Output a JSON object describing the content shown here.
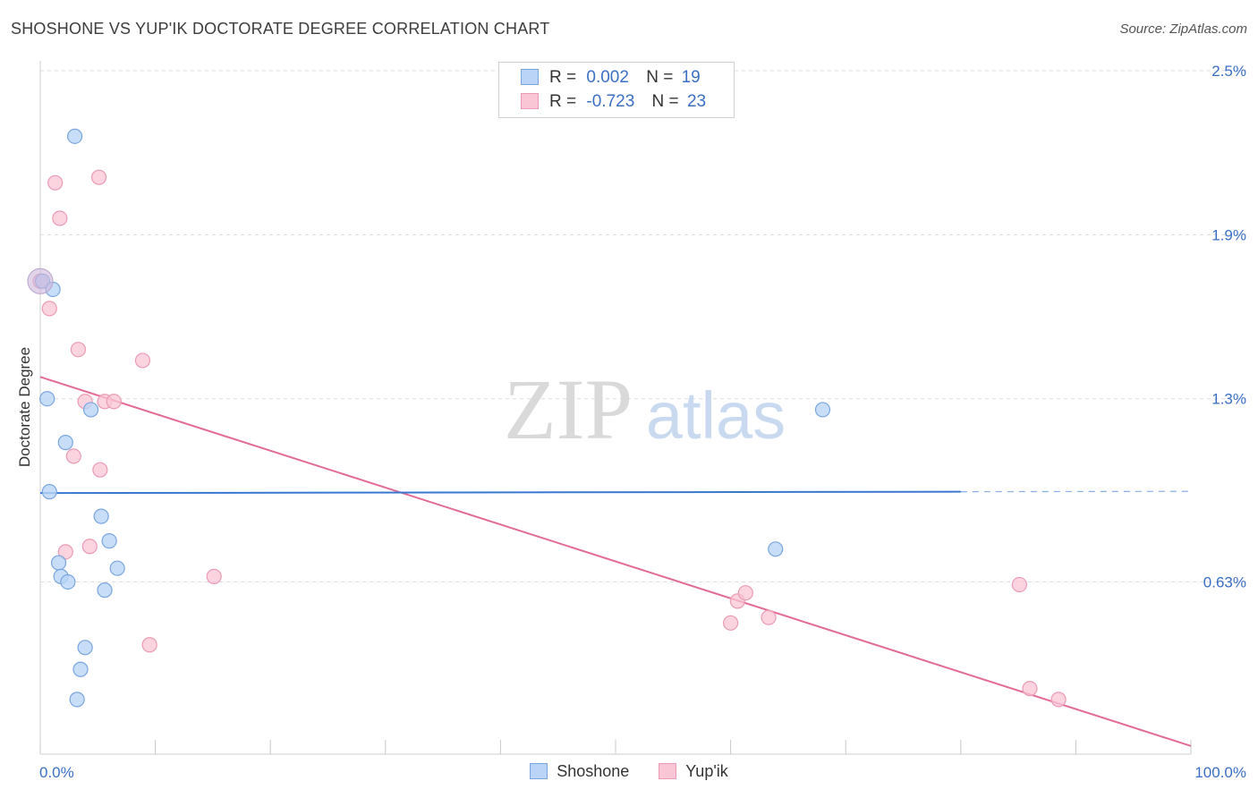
{
  "title": "SHOSHONE VS YUP'IK DOCTORATE DEGREE CORRELATION CHART",
  "source": "Source: ZipAtlas.com",
  "watermark": {
    "zip": "ZIP",
    "atlas": "atlas"
  },
  "legend": {
    "rows": [
      {
        "r_label": "R =",
        "r_value": "0.002",
        "n_label": "N =",
        "n_value": "19"
      },
      {
        "r_label": "R =",
        "r_value": "-0.723",
        "n_label": "N =",
        "n_value": "23"
      }
    ]
  },
  "chart_data": {
    "type": "scatter",
    "title": "SHOSHONE VS YUP'IK DOCTORATE DEGREE CORRELATION CHART",
    "xlabel": "",
    "ylabel": "Doctorate Degree",
    "xlim": [
      0,
      100
    ],
    "ylim": [
      0.0,
      2.5
    ],
    "x_tick_labels": [
      "0.0%",
      "100.0%"
    ],
    "y_ticks": [
      {
        "value": 2.5,
        "label": "2.5%"
      },
      {
        "value": 1.9,
        "label": "1.9%"
      },
      {
        "value": 1.3,
        "label": "1.3%"
      },
      {
        "value": 0.63,
        "label": "0.63%"
      }
    ],
    "grid": true,
    "colors": {
      "shoshone_fill": "#b9d4f6",
      "shoshone_stroke": "#7aa6e0",
      "shoshone_line": "#3a78d0",
      "yupik_fill": "#f9c6d5",
      "yupik_stroke": "#eb9ab4",
      "yupik_line": "#e26b95",
      "axis_label": "#3a6fc4"
    },
    "series": [
      {
        "name": "Shoshone",
        "points": [
          [
            3.0,
            2.26
          ],
          [
            0.2,
            1.73
          ],
          [
            1.1,
            1.7
          ],
          [
            0.6,
            1.3
          ],
          [
            4.4,
            1.26
          ],
          [
            2.2,
            1.14
          ],
          [
            0.8,
            0.96
          ],
          [
            5.3,
            0.87
          ],
          [
            6.0,
            0.78
          ],
          [
            1.6,
            0.7
          ],
          [
            1.8,
            0.65
          ],
          [
            2.4,
            0.63
          ],
          [
            6.7,
            0.68
          ],
          [
            5.6,
            0.6
          ],
          [
            3.9,
            0.39
          ],
          [
            3.5,
            0.31
          ],
          [
            3.2,
            0.2
          ],
          [
            68.0,
            1.26
          ],
          [
            63.9,
            0.75
          ]
        ],
        "trend": {
          "x": [
            0,
            80
          ],
          "y": [
            0.955,
            0.96
          ],
          "dashed_extension_x": [
            80,
            100
          ]
        }
      },
      {
        "name": "Yup'ik",
        "points": [
          [
            1.3,
            2.09
          ],
          [
            5.1,
            2.11
          ],
          [
            1.7,
            1.96
          ],
          [
            0.8,
            1.63
          ],
          [
            3.3,
            1.48
          ],
          [
            8.9,
            1.44
          ],
          [
            3.9,
            1.29
          ],
          [
            5.6,
            1.29
          ],
          [
            6.4,
            1.29
          ],
          [
            2.9,
            1.09
          ],
          [
            5.2,
            1.04
          ],
          [
            2.2,
            0.74
          ],
          [
            4.3,
            0.76
          ],
          [
            15.1,
            0.65
          ],
          [
            9.5,
            0.4
          ],
          [
            60.0,
            0.48
          ],
          [
            60.6,
            0.56
          ],
          [
            61.3,
            0.59
          ],
          [
            63.3,
            0.5
          ],
          [
            85.1,
            0.62
          ],
          [
            86.0,
            0.24
          ],
          [
            88.5,
            0.2
          ],
          [
            0.0,
            1.73
          ]
        ],
        "trend": {
          "x": [
            0,
            100
          ],
          "y": [
            1.38,
            0.03
          ]
        }
      }
    ]
  },
  "bottom_legend": [
    {
      "label": "Shoshone"
    },
    {
      "label": "Yup'ik"
    }
  ]
}
